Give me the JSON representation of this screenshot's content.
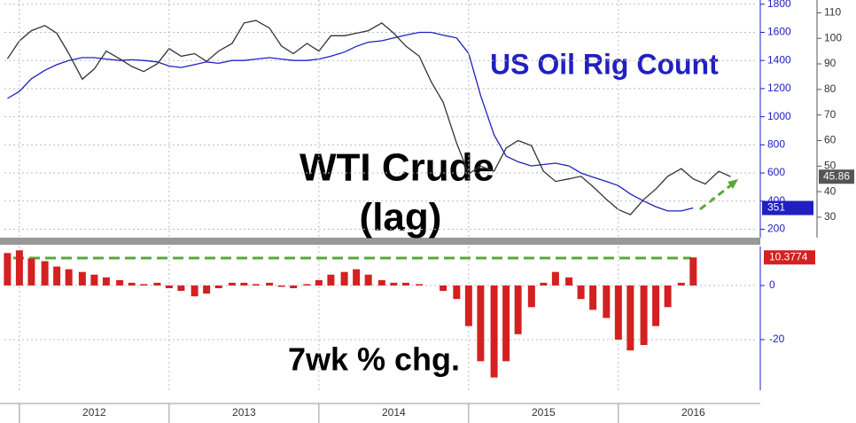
{
  "chart_data": [
    {
      "type": "line",
      "x": [
        2011.92,
        2012.0,
        2012.08,
        2012.17,
        2012.25,
        2012.33,
        2012.42,
        2012.5,
        2012.58,
        2012.67,
        2012.75,
        2012.83,
        2012.92,
        2013.0,
        2013.08,
        2013.17,
        2013.25,
        2013.33,
        2013.42,
        2013.5,
        2013.58,
        2013.67,
        2013.75,
        2013.83,
        2013.92,
        2014.0,
        2014.08,
        2014.17,
        2014.25,
        2014.33,
        2014.42,
        2014.5,
        2014.58,
        2014.67,
        2014.75,
        2014.83,
        2014.92,
        2015.0,
        2015.08,
        2015.17,
        2015.25,
        2015.33,
        2015.42,
        2015.5,
        2015.58,
        2015.67,
        2015.75,
        2015.83,
        2015.92,
        2016.0,
        2016.08,
        2016.17,
        2016.25,
        2016.33,
        2016.42,
        2016.5,
        2016.58,
        2016.67,
        2016.75
      ],
      "series": [
        {
          "name": "US Oil Rig Count",
          "color": "#2020c0",
          "values": [
            1130,
            1180,
            1270,
            1330,
            1370,
            1400,
            1420,
            1420,
            1410,
            1400,
            1405,
            1400,
            1390,
            1360,
            1350,
            1370,
            1390,
            1380,
            1400,
            1400,
            1410,
            1420,
            1410,
            1400,
            1400,
            1410,
            1430,
            1460,
            1500,
            1530,
            1540,
            1560,
            1580,
            1600,
            1600,
            1580,
            1560,
            1450,
            1150,
            870,
            720,
            680,
            650,
            660,
            670,
            650,
            600,
            570,
            540,
            510,
            450,
            400,
            360,
            330,
            330,
            351,
            null,
            null,
            null
          ]
        },
        {
          "name": "WTI Crude",
          "color": "#333333",
          "axis": "y2",
          "values": [
            92,
            99,
            103,
            105,
            102,
            94,
            84,
            88,
            95,
            92,
            89,
            87,
            90,
            96,
            93,
            94,
            91,
            95,
            98,
            106,
            107,
            104,
            97,
            94,
            98,
            95,
            101,
            101,
            102,
            103,
            106,
            102,
            97,
            93,
            83,
            75,
            59,
            47,
            50,
            48,
            57,
            60,
            58,
            48,
            44,
            45,
            46,
            42,
            37,
            33,
            31,
            37,
            41,
            46,
            49,
            45,
            43,
            48,
            45.86
          ]
        }
      ],
      "annotations": [
        "(lag)"
      ],
      "xlim": [
        2011.9,
        2016.93
      ],
      "ylim": [
        140,
        1830
      ],
      "yticks": [
        200,
        400,
        600,
        800,
        1000,
        1200,
        1400,
        1600,
        1800
      ],
      "y2lim": [
        22,
        115
      ],
      "y2ticks": [
        30,
        40,
        50,
        60,
        70,
        80,
        90,
        100,
        110
      ],
      "grid": true
    },
    {
      "type": "bar",
      "title": "7wk % chg.",
      "color": "#d42020",
      "x": [
        2011.92,
        2012.0,
        2012.08,
        2012.17,
        2012.25,
        2012.33,
        2012.42,
        2012.5,
        2012.58,
        2012.67,
        2012.75,
        2012.83,
        2012.92,
        2013.0,
        2013.08,
        2013.17,
        2013.25,
        2013.33,
        2013.42,
        2013.5,
        2013.58,
        2013.67,
        2013.75,
        2013.83,
        2013.92,
        2014.0,
        2014.08,
        2014.17,
        2014.25,
        2014.33,
        2014.42,
        2014.5,
        2014.58,
        2014.67,
        2014.75,
        2014.83,
        2014.92,
        2015.0,
        2015.08,
        2015.17,
        2015.25,
        2015.33,
        2015.42,
        2015.5,
        2015.58,
        2015.67,
        2015.75,
        2015.83,
        2015.92,
        2016.0,
        2016.08,
        2016.17,
        2016.25,
        2016.33,
        2016.42,
        2016.5
      ],
      "values": [
        12,
        13,
        10,
        9,
        7,
        6,
        5,
        4,
        3,
        2,
        1,
        0.5,
        1,
        -1,
        -2,
        -4,
        -3,
        -1,
        1,
        1,
        0.5,
        1,
        -0.5,
        -1,
        0.5,
        2,
        4,
        5,
        6,
        4,
        2,
        1,
        1,
        0.5,
        0,
        -2,
        -5,
        -15,
        -28,
        -34,
        -28,
        -18,
        -8,
        1,
        5,
        3,
        -5,
        -9,
        -12,
        -20,
        -24,
        -22,
        -15,
        -8,
        1,
        10.3774
      ],
      "xlim": [
        2011.9,
        2016.93
      ],
      "xticks": [
        2012,
        2013,
        2014,
        2015,
        2016
      ],
      "ylim": [
        -38.7,
        14.4
      ],
      "yticks": [
        -20,
        0
      ],
      "grid": true
    }
  ]
}
